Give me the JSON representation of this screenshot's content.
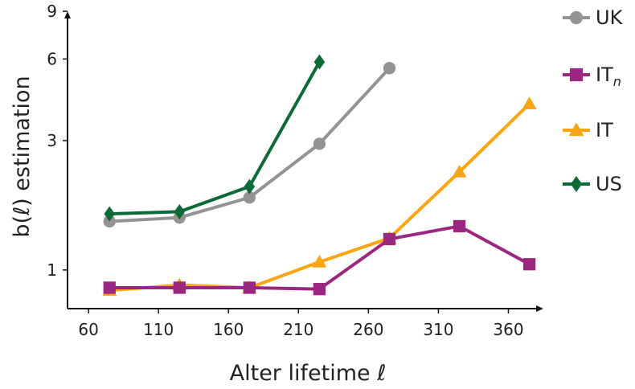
{
  "chart_data": {
    "type": "line",
    "xlabel": "Alter lifetime ℓ",
    "ylabel": "b(ℓ) estimation",
    "x_ticks": [
      60,
      110,
      160,
      210,
      260,
      310,
      360
    ],
    "y_ticks": [
      {
        "value": 1,
        "label": "1"
      },
      {
        "value": 3,
        "label": "3"
      },
      {
        "value": 6,
        "label": "6"
      },
      {
        "value": 9,
        "label": "9"
      }
    ],
    "xlim": [
      45,
      385
    ],
    "ylim": [
      0.72,
      9
    ],
    "y_scale": "log",
    "grid": false,
    "legend_position": "right",
    "series": [
      {
        "name": "UK",
        "label_main": "UK",
        "label_sub": "",
        "marker": "circle",
        "color": "#939393",
        "x": [
          75,
          125,
          175,
          225,
          275
        ],
        "y": [
          1.51,
          1.56,
          1.85,
          2.92,
          5.55
        ]
      },
      {
        "name": "ITn",
        "label_main": "IT",
        "label_sub": "n",
        "marker": "square",
        "color": "#9c2780",
        "x": [
          75,
          125,
          175,
          225,
          275,
          325,
          375
        ],
        "y": [
          0.86,
          0.86,
          0.86,
          0.85,
          1.3,
          1.45,
          1.05
        ]
      },
      {
        "name": "IT",
        "label_main": "IT",
        "label_sub": "",
        "marker": "triangle",
        "color": "#fca512",
        "x": [
          75,
          125,
          175,
          225,
          275,
          325,
          375
        ],
        "y": [
          0.84,
          0.88,
          0.86,
          1.07,
          1.31,
          2.3,
          4.1
        ]
      },
      {
        "name": "US",
        "label_main": "US",
        "label_sub": "",
        "marker": "diamond",
        "color": "#0c6a37",
        "x": [
          75,
          125,
          175,
          225
        ],
        "y": [
          1.61,
          1.64,
          2.03,
          5.85
        ]
      }
    ]
  }
}
